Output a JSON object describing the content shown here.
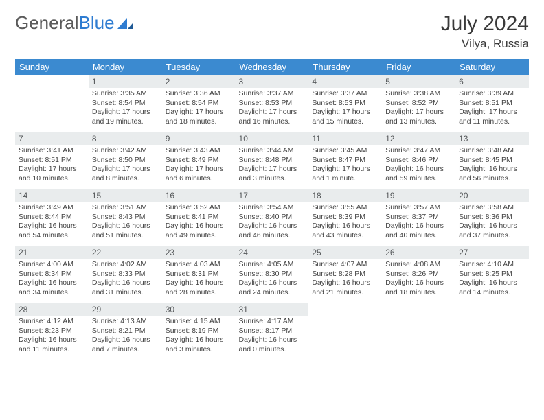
{
  "logo": {
    "text1": "General",
    "text2": "Blue"
  },
  "title": "July 2024",
  "location": "Vilya, Russia",
  "colors": {
    "header_bg": "#3b8ad0",
    "header_text": "#ffffff",
    "row_border": "#2a6aa5",
    "daynum_bg": "#e9eced",
    "daynum_text": "#55585a",
    "body_text": "#444444",
    "logo_gray": "#5a5a5a",
    "logo_blue": "#2e7cd1"
  },
  "weekdays": [
    "Sunday",
    "Monday",
    "Tuesday",
    "Wednesday",
    "Thursday",
    "Friday",
    "Saturday"
  ],
  "weeks": [
    [
      {
        "n": "",
        "sr": "",
        "ss": "",
        "dl": ""
      },
      {
        "n": "1",
        "sr": "3:35 AM",
        "ss": "8:54 PM",
        "dl": "17 hours and 19 minutes."
      },
      {
        "n": "2",
        "sr": "3:36 AM",
        "ss": "8:54 PM",
        "dl": "17 hours and 18 minutes."
      },
      {
        "n": "3",
        "sr": "3:37 AM",
        "ss": "8:53 PM",
        "dl": "17 hours and 16 minutes."
      },
      {
        "n": "4",
        "sr": "3:37 AM",
        "ss": "8:53 PM",
        "dl": "17 hours and 15 minutes."
      },
      {
        "n": "5",
        "sr": "3:38 AM",
        "ss": "8:52 PM",
        "dl": "17 hours and 13 minutes."
      },
      {
        "n": "6",
        "sr": "3:39 AM",
        "ss": "8:51 PM",
        "dl": "17 hours and 11 minutes."
      }
    ],
    [
      {
        "n": "7",
        "sr": "3:41 AM",
        "ss": "8:51 PM",
        "dl": "17 hours and 10 minutes."
      },
      {
        "n": "8",
        "sr": "3:42 AM",
        "ss": "8:50 PM",
        "dl": "17 hours and 8 minutes."
      },
      {
        "n": "9",
        "sr": "3:43 AM",
        "ss": "8:49 PM",
        "dl": "17 hours and 6 minutes."
      },
      {
        "n": "10",
        "sr": "3:44 AM",
        "ss": "8:48 PM",
        "dl": "17 hours and 3 minutes."
      },
      {
        "n": "11",
        "sr": "3:45 AM",
        "ss": "8:47 PM",
        "dl": "17 hours and 1 minute."
      },
      {
        "n": "12",
        "sr": "3:47 AM",
        "ss": "8:46 PM",
        "dl": "16 hours and 59 minutes."
      },
      {
        "n": "13",
        "sr": "3:48 AM",
        "ss": "8:45 PM",
        "dl": "16 hours and 56 minutes."
      }
    ],
    [
      {
        "n": "14",
        "sr": "3:49 AM",
        "ss": "8:44 PM",
        "dl": "16 hours and 54 minutes."
      },
      {
        "n": "15",
        "sr": "3:51 AM",
        "ss": "8:43 PM",
        "dl": "16 hours and 51 minutes."
      },
      {
        "n": "16",
        "sr": "3:52 AM",
        "ss": "8:41 PM",
        "dl": "16 hours and 49 minutes."
      },
      {
        "n": "17",
        "sr": "3:54 AM",
        "ss": "8:40 PM",
        "dl": "16 hours and 46 minutes."
      },
      {
        "n": "18",
        "sr": "3:55 AM",
        "ss": "8:39 PM",
        "dl": "16 hours and 43 minutes."
      },
      {
        "n": "19",
        "sr": "3:57 AM",
        "ss": "8:37 PM",
        "dl": "16 hours and 40 minutes."
      },
      {
        "n": "20",
        "sr": "3:58 AM",
        "ss": "8:36 PM",
        "dl": "16 hours and 37 minutes."
      }
    ],
    [
      {
        "n": "21",
        "sr": "4:00 AM",
        "ss": "8:34 PM",
        "dl": "16 hours and 34 minutes."
      },
      {
        "n": "22",
        "sr": "4:02 AM",
        "ss": "8:33 PM",
        "dl": "16 hours and 31 minutes."
      },
      {
        "n": "23",
        "sr": "4:03 AM",
        "ss": "8:31 PM",
        "dl": "16 hours and 28 minutes."
      },
      {
        "n": "24",
        "sr": "4:05 AM",
        "ss": "8:30 PM",
        "dl": "16 hours and 24 minutes."
      },
      {
        "n": "25",
        "sr": "4:07 AM",
        "ss": "8:28 PM",
        "dl": "16 hours and 21 minutes."
      },
      {
        "n": "26",
        "sr": "4:08 AM",
        "ss": "8:26 PM",
        "dl": "16 hours and 18 minutes."
      },
      {
        "n": "27",
        "sr": "4:10 AM",
        "ss": "8:25 PM",
        "dl": "16 hours and 14 minutes."
      }
    ],
    [
      {
        "n": "28",
        "sr": "4:12 AM",
        "ss": "8:23 PM",
        "dl": "16 hours and 11 minutes."
      },
      {
        "n": "29",
        "sr": "4:13 AM",
        "ss": "8:21 PM",
        "dl": "16 hours and 7 minutes."
      },
      {
        "n": "30",
        "sr": "4:15 AM",
        "ss": "8:19 PM",
        "dl": "16 hours and 3 minutes."
      },
      {
        "n": "31",
        "sr": "4:17 AM",
        "ss": "8:17 PM",
        "dl": "16 hours and 0 minutes."
      },
      {
        "n": "",
        "sr": "",
        "ss": "",
        "dl": ""
      },
      {
        "n": "",
        "sr": "",
        "ss": "",
        "dl": ""
      },
      {
        "n": "",
        "sr": "",
        "ss": "",
        "dl": ""
      }
    ]
  ],
  "labels": {
    "sunrise": "Sunrise: ",
    "sunset": "Sunset: ",
    "daylight": "Daylight: "
  }
}
